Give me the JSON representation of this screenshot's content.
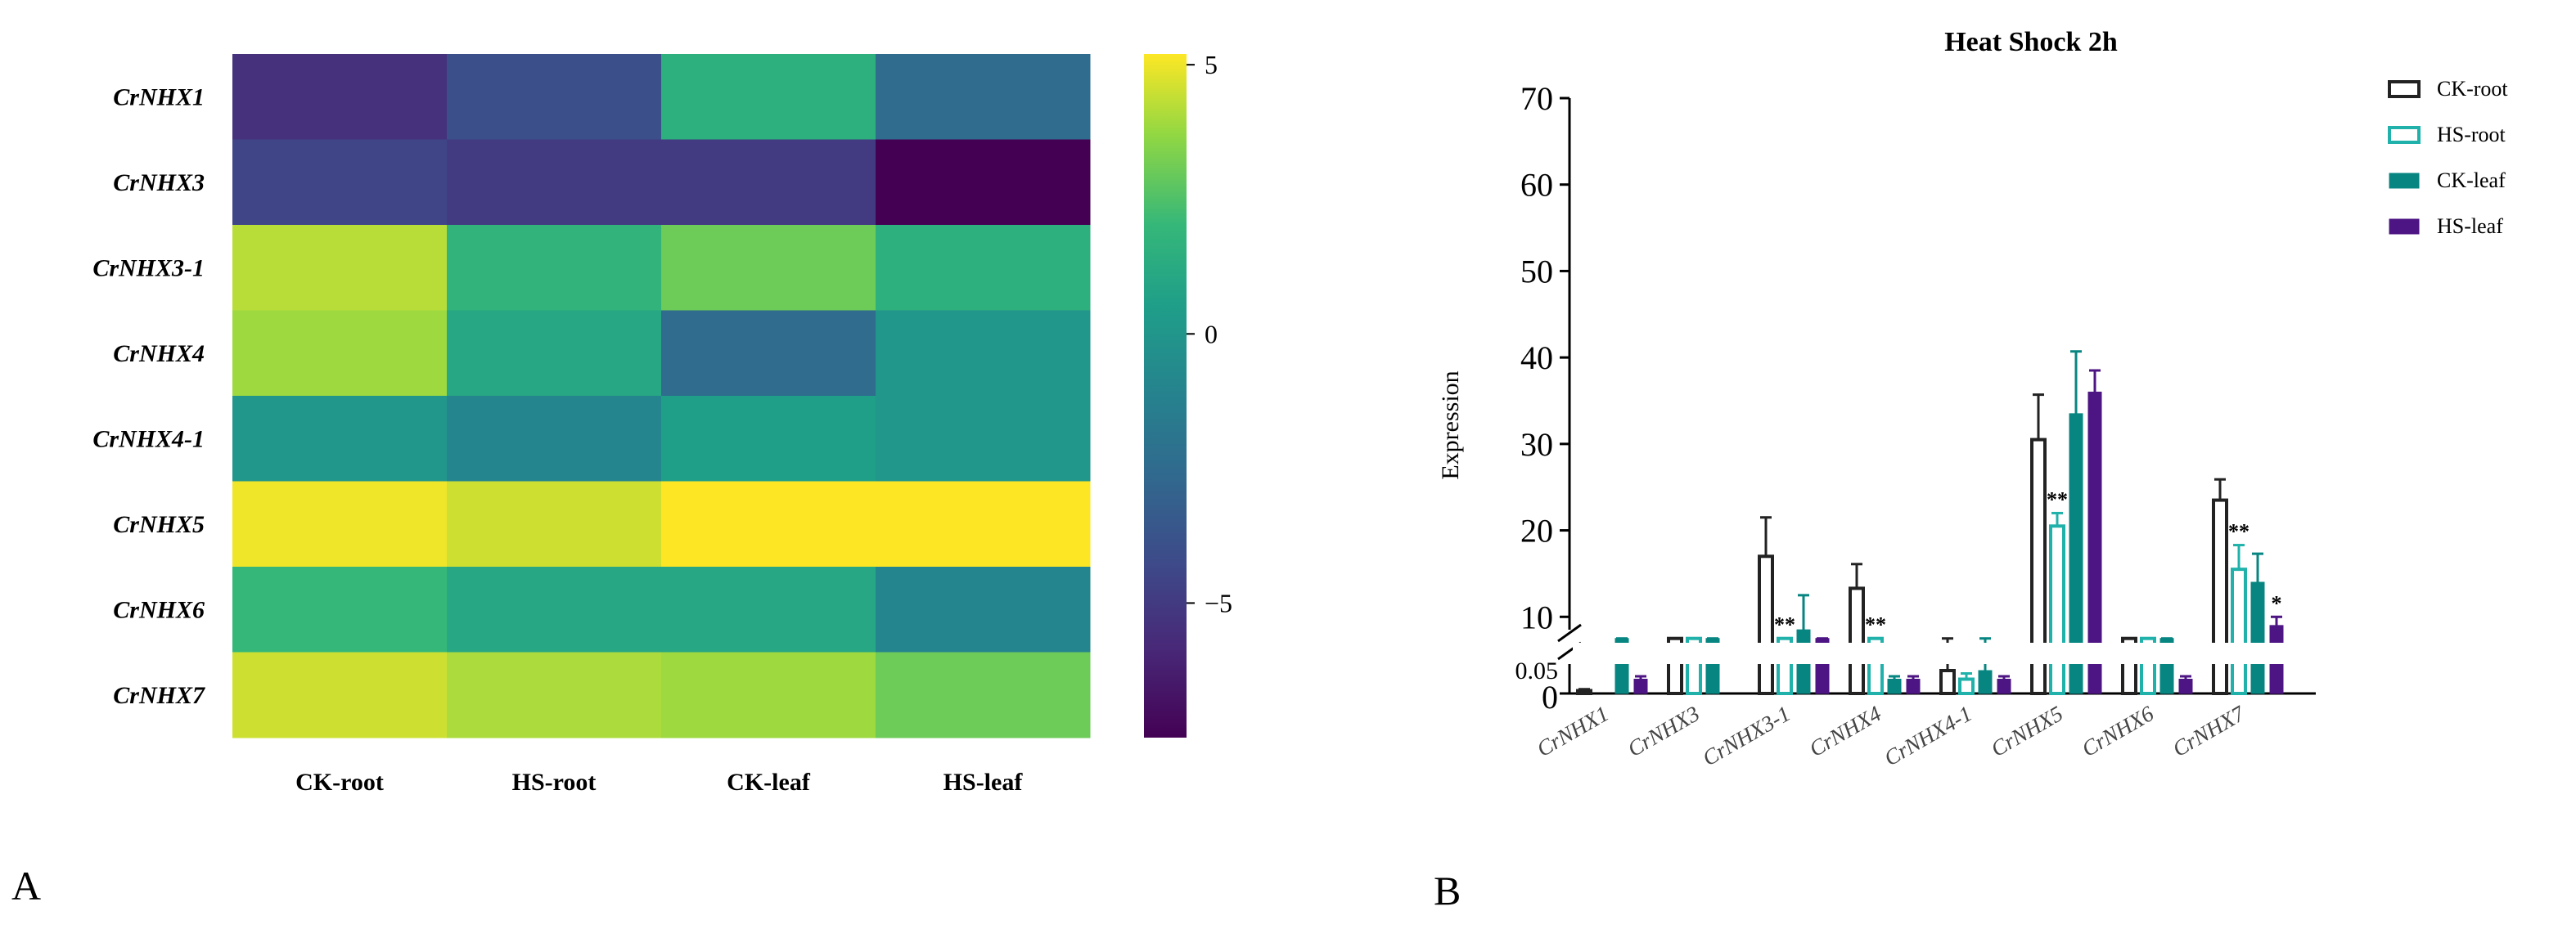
{
  "panels": {
    "a_label": "A",
    "b_label": "B"
  },
  "colors": {
    "ck_root": "#222222",
    "hs_root": "#20b2aa",
    "ck_leaf": "#078580",
    "hs_leaf": "#4d1583",
    "axis": "#000000"
  },
  "chart_data": [
    {
      "type": "heatmap",
      "panel": "A",
      "rows": [
        "CrNHX1",
        "CrNHX3",
        "CrNHX3-1",
        "CrNHX4",
        "CrNHX4-1",
        "CrNHX5",
        "CrNHX6",
        "CrNHX7"
      ],
      "columns": [
        "CK-root",
        "HS-root",
        "CK-leaf",
        "HS-leaf"
      ],
      "values": [
        [
          -5.5,
          -4.0,
          1.5,
          -2.5
        ],
        [
          -4.5,
          -5.0,
          -5.0,
          -7.5
        ],
        [
          4.2,
          1.8,
          3.0,
          1.5
        ],
        [
          3.8,
          1.0,
          -2.5,
          0.0
        ],
        [
          0.0,
          -1.0,
          0.5,
          0.0
        ],
        [
          5.0,
          4.5,
          5.2,
          5.2
        ],
        [
          2.0,
          1.0,
          1.0,
          -1.0
        ],
        [
          4.5,
          4.0,
          3.8,
          3.0
        ]
      ],
      "colorbar": {
        "ticks": [
          5,
          0,
          -5
        ],
        "tick_labels": [
          "5",
          "0",
          "−5"
        ],
        "range": [
          -7.5,
          5.2
        ]
      }
    },
    {
      "type": "bar",
      "panel": "B",
      "title": "Heat Shock 2h",
      "xlabel": "",
      "ylabel": "Expression",
      "categories": [
        "CrNHX1",
        "CrNHX3",
        "CrNHX3-1",
        "CrNHX4",
        "CrNHX4-1",
        "CrNHX5",
        "CrNHX6",
        "CrNHX7"
      ],
      "ylim": [
        0,
        70
      ],
      "y_ticks": [
        10,
        20,
        30,
        40,
        50,
        60,
        70
      ],
      "y_tick_labels": [
        "10",
        "20",
        "30",
        "40",
        "50",
        "60",
        "70"
      ],
      "y_break_labels": [
        "0.05",
        "0"
      ],
      "axis_break": true,
      "series": [
        {
          "name": "CK-root",
          "style": "hollow",
          "color_key": "ck_root",
          "values": [
            0.1,
            2.5,
            17.0,
            13.3,
            0.8,
            30.5,
            5.5,
            23.5
          ],
          "errors": [
            0.05,
            0.6,
            4.5,
            2.8,
            0.3,
            5.2,
            1.7,
            2.4
          ],
          "significance": [
            "",
            "",
            "",
            "",
            "",
            "",
            "",
            ""
          ]
        },
        {
          "name": "HS-root",
          "style": "hollow",
          "color_key": "hs_root",
          "values": [
            0.0,
            1.5,
            4.0,
            2.0,
            0.5,
            20.5,
            1.5,
            15.5
          ],
          "errors": [
            0.0,
            0.8,
            1.0,
            0.8,
            0.2,
            1.5,
            0.5,
            2.8
          ],
          "significance": [
            "",
            "",
            "**",
            "**",
            "",
            "**",
            "",
            "**"
          ]
        },
        {
          "name": "CK-leaf",
          "style": "filled",
          "color_key": "ck_leaf",
          "values": [
            1.5,
            1.2,
            8.5,
            0.5,
            0.8,
            33.5,
            1.5,
            14.0
          ],
          "errors": [
            0.5,
            0.5,
            4.0,
            0.1,
            0.2,
            7.2,
            0.6,
            3.3
          ],
          "significance": [
            "",
            "",
            "",
            "",
            "",
            "",
            "",
            ""
          ]
        },
        {
          "name": "HS-leaf",
          "style": "filled",
          "color_key": "hs_leaf",
          "values": [
            0.5,
            0.0,
            3.0,
            0.5,
            0.5,
            36.0,
            0.5,
            9.0
          ],
          "errors": [
            0.1,
            0.0,
            0.3,
            0.1,
            0.1,
            2.5,
            0.1,
            1.0
          ],
          "significance": [
            "",
            "",
            "",
            "",
            "",
            "",
            "",
            "*"
          ]
        }
      ],
      "legend_position": "top-right"
    }
  ]
}
